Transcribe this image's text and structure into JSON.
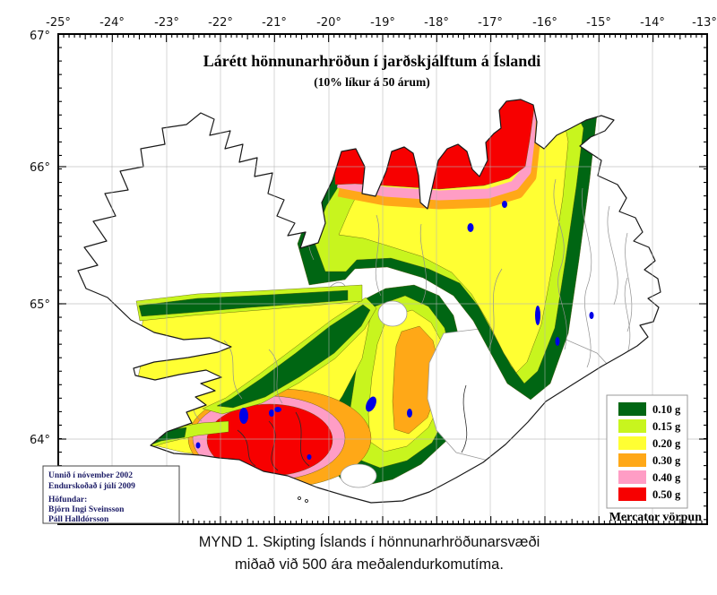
{
  "map": {
    "title": "Lárétt hönnunarhröðun í jarðskjálftum á Íslandi",
    "subtitle": "(10% líkur á 50 árum)",
    "projection_label": "Mercator vörpun",
    "lon_labels": [
      "-25°",
      "-24°",
      "-23°",
      "-22°",
      "-21°",
      "-20°",
      "-19°",
      "-18°",
      "-17°",
      "-16°",
      "-15°",
      "-14°",
      "-13°"
    ],
    "lat_labels": [
      "67°",
      "66°",
      "65°",
      "64°"
    ]
  },
  "legend": {
    "items": [
      {
        "label": "0.10 g",
        "color": "#006613"
      },
      {
        "label": "0.15 g",
        "color": "#C8F51E"
      },
      {
        "label": "0.20 g",
        "color": "#FFFF33"
      },
      {
        "label": "0.30 g",
        "color": "#FFA817"
      },
      {
        "label": "0.40 g",
        "color": "#FF9DC5"
      },
      {
        "label": "0.50 g",
        "color": "#F70000"
      }
    ]
  },
  "info_box": {
    "lines": [
      "Unnið í nóvember 2002",
      "Endurskoðað í júlí 2009",
      "Höfundar:",
      "Björn Ingi Sveinsson",
      "Páll Halldórsson"
    ]
  },
  "caption": {
    "line1": "MYND 1. Skipting Íslands í hönnunarhröðunarsvæði",
    "line2": "miðað við 500 ára meðalendurkomutíma."
  },
  "colors": {
    "green": "#006613",
    "chartreuse": "#C8F51E",
    "yellow": "#FFFF33",
    "orange": "#FFA817",
    "pink": "#FF9DC5",
    "red": "#F70000",
    "lake": "#0000E6",
    "land": "#ffffff"
  }
}
